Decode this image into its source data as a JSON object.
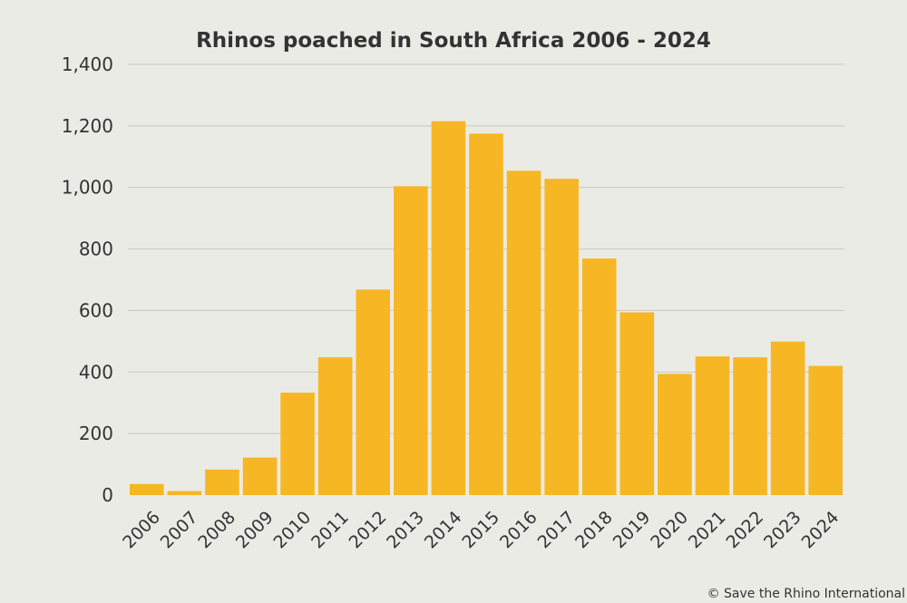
{
  "credit": "© Save the Rhino International",
  "colors": {
    "background": "#ebebe6",
    "bar": "#f7b623",
    "grid": "#c9c9c3",
    "text": "#333333"
  },
  "chart_data": {
    "type": "bar",
    "title": "Rhinos poached in South Africa 2006 - 2024",
    "xlabel": "",
    "ylabel": "",
    "categories": [
      "2006",
      "2007",
      "2008",
      "2009",
      "2010",
      "2011",
      "2012",
      "2013",
      "2014",
      "2015",
      "2016",
      "2017",
      "2018",
      "2019",
      "2020",
      "2021",
      "2022",
      "2023",
      "2024"
    ],
    "values": [
      36,
      13,
      83,
      122,
      333,
      448,
      668,
      1004,
      1215,
      1175,
      1054,
      1028,
      769,
      594,
      394,
      451,
      448,
      499,
      420
    ],
    "ylim": [
      0,
      1400
    ],
    "yticks": [
      0,
      200,
      400,
      600,
      800,
      1000,
      1200,
      1400
    ],
    "ytick_labels": [
      "0",
      "200",
      "400",
      "600",
      "800",
      "1,000",
      "1,200",
      "1,400"
    ],
    "grid": true,
    "legend": "none"
  }
}
